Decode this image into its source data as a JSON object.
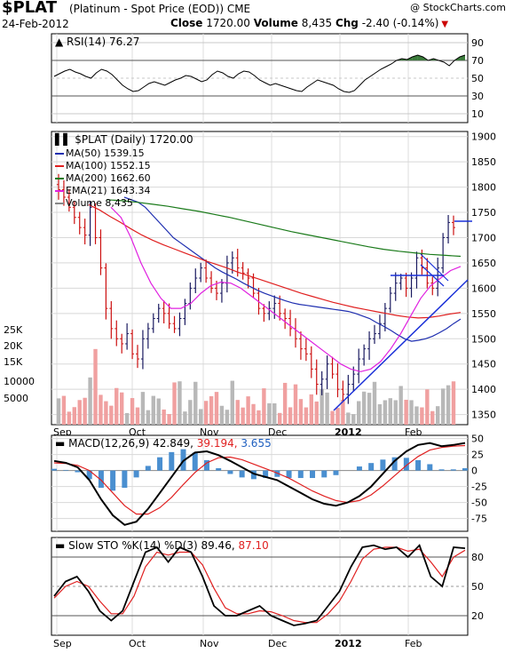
{
  "header": {
    "symbol": "$PLAT",
    "name": "(Platinum - Spot Price (EOD)) CME",
    "copyright": "@ StockCharts.com",
    "date": "24-Feb-2012",
    "close_label": "Close",
    "close_value": "1720.00",
    "volume_label": "Volume",
    "volume_value": "8,435",
    "chg_label": "Chg",
    "chg_value": "-2.40 (-0.14%)"
  },
  "colors": {
    "ma50": "#1f2fb0",
    "ma100": "#e02020",
    "ma200": "#1a7a1a",
    "ema21": "#e020e0",
    "up_bar": "#1a1a60",
    "down_bar": "#cc1010",
    "vol_up": "#b8b8b8",
    "vol_down": "#f0a0a0",
    "trendline": "#1a30d8",
    "rsi_fill_hi": "#3a7a3a",
    "rsi_fill_lo": "#8a4040",
    "macd_hist": "#4a8fd0"
  },
  "chart_data": [
    {
      "type": "line",
      "panel": "rsi",
      "title": "RSI(14) 76.27",
      "ylim": [
        0,
        100
      ],
      "yticks": [
        10,
        30,
        50,
        70,
        90
      ],
      "series": [
        {
          "name": "RSI(14)",
          "values": [
            52,
            55,
            58,
            60,
            57,
            55,
            52,
            50,
            56,
            60,
            58,
            54,
            48,
            42,
            38,
            35,
            36,
            40,
            44,
            46,
            44,
            42,
            45,
            48,
            50,
            53,
            52,
            49,
            46,
            48,
            54,
            58,
            56,
            52,
            50,
            55,
            58,
            57,
            53,
            48,
            45,
            42,
            44,
            42,
            40,
            38,
            36,
            35,
            40,
            44,
            48,
            46,
            44,
            42,
            38,
            35,
            34,
            36,
            42,
            48,
            52,
            56,
            60,
            63,
            66,
            70,
            72,
            71,
            74,
            76,
            74,
            70,
            72,
            70,
            68,
            64,
            70,
            74,
            76
          ]
        }
      ]
    },
    {
      "type": "line",
      "panel": "price",
      "title": "$PLAT (Daily) 1720.00",
      "ylim": [
        1330,
        1910
      ],
      "yticks": [
        1350,
        1400,
        1450,
        1500,
        1550,
        1600,
        1650,
        1700,
        1750,
        1800,
        1850,
        1900
      ],
      "xticks": [
        "Sep",
        "Oct",
        "Nov",
        "Dec",
        "2012",
        "Feb"
      ],
      "legend": [
        "MA(50) 1539.15",
        "MA(100) 1552.15",
        "MA(200) 1662.60",
        "EMA(21) 1643.34",
        "Volume 8,435"
      ],
      "volume_ticks": [
        "25K",
        "20K",
        "15K",
        "10000",
        "5000"
      ],
      "series": [
        {
          "name": "Close",
          "values": [
            1795,
            1780,
            1760,
            1740,
            1720,
            1705,
            1760,
            1700,
            1640,
            1560,
            1520,
            1500,
            1490,
            1510,
            1470,
            1460,
            1500,
            1520,
            1540,
            1560,
            1550,
            1530,
            1520,
            1540,
            1570,
            1600,
            1620,
            1640,
            1620,
            1600,
            1590,
            1610,
            1650,
            1660,
            1640,
            1630,
            1620,
            1590,
            1560,
            1550,
            1560,
            1570,
            1550,
            1540,
            1520,
            1500,
            1480,
            1470,
            1440,
            1410,
            1420,
            1450,
            1430,
            1400,
            1390,
            1410,
            1430,
            1460,
            1480,
            1500,
            1510,
            1530,
            1560,
            1590,
            1610,
            1620,
            1600,
            1620,
            1660,
            1640,
            1610,
            1600,
            1640,
            1700,
            1730,
            1720
          ]
        },
        {
          "name": "MA(50)",
          "values": [
            1780,
            1775,
            1770,
            1760,
            1745,
            1730,
            1715,
            1700,
            1690,
            1680,
            1670,
            1660,
            1650,
            1640,
            1632,
            1625,
            1618,
            1610,
            1603,
            1596,
            1590,
            1585,
            1580,
            1575,
            1571,
            1568,
            1566,
            1564,
            1562,
            1560,
            1558,
            1556,
            1554,
            1550,
            1545,
            1540,
            1532,
            1525,
            1517,
            1508,
            1500,
            1495,
            1497,
            1500,
            1505,
            1512,
            1520,
            1530,
            1539
          ]
        },
        {
          "name": "MA(100)",
          "values": [
            1765,
            1755,
            1742,
            1730,
            1717,
            1705,
            1695,
            1686,
            1678,
            1670,
            1662,
            1654,
            1647,
            1640,
            1632,
            1625,
            1618,
            1611,
            1604,
            1597,
            1590,
            1584,
            1578,
            1572,
            1567,
            1562,
            1558,
            1554,
            1550,
            1546,
            1543,
            1541,
            1542,
            1545,
            1549,
            1552
          ]
        },
        {
          "name": "MA(200)",
          "values": [
            1775,
            1773,
            1770,
            1766,
            1762,
            1757,
            1752,
            1746,
            1740,
            1733,
            1726,
            1719,
            1712,
            1706,
            1700,
            1694,
            1688,
            1682,
            1677,
            1673,
            1670,
            1667,
            1665,
            1663
          ]
        },
        {
          "name": "EMA(21)",
          "values": [
            1760,
            1740,
            1700,
            1650,
            1610,
            1580,
            1560,
            1560,
            1570,
            1590,
            1605,
            1612,
            1610,
            1600,
            1585,
            1570,
            1555,
            1540,
            1525,
            1510,
            1495,
            1480,
            1465,
            1450,
            1440,
            1435,
            1440,
            1455,
            1480,
            1510,
            1545,
            1580,
            1605,
            1620,
            1635,
            1643
          ]
        }
      ]
    },
    {
      "type": "line",
      "panel": "macd",
      "title": "MACD(12,26,9)",
      "values_label": [
        "42.849",
        "39.194",
        "3.655"
      ],
      "ylim": [
        -95,
        55
      ],
      "yticks": [
        50,
        25,
        0,
        -25,
        -50,
        -75
      ],
      "series": [
        {
          "name": "MACD",
          "values": [
            15,
            12,
            5,
            -15,
            -45,
            -70,
            -85,
            -80,
            -60,
            -35,
            -10,
            15,
            28,
            30,
            24,
            15,
            5,
            -5,
            -10,
            -15,
            -25,
            -35,
            -45,
            -52,
            -55,
            -50,
            -40,
            -25,
            -5,
            15,
            30,
            40,
            43,
            38,
            40,
            43
          ]
        },
        {
          "name": "Signal",
          "values": [
            12,
            11,
            8,
            0,
            -15,
            -35,
            -55,
            -68,
            -68,
            -58,
            -42,
            -22,
            -3,
            12,
            20,
            21,
            17,
            10,
            3,
            -4,
            -12,
            -22,
            -32,
            -40,
            -47,
            -50,
            -47,
            -38,
            -24,
            -8,
            8,
            22,
            32,
            36,
            38,
            39
          ]
        }
      ]
    },
    {
      "type": "line",
      "panel": "sto",
      "title": "Slow STO %K(14) %D(3)",
      "values_label": [
        "89.46",
        "87.10"
      ],
      "ylim": [
        0,
        100
      ],
      "yticks": [
        20,
        50,
        80
      ],
      "series": [
        {
          "name": "%K",
          "values": [
            40,
            55,
            60,
            45,
            25,
            15,
            25,
            55,
            85,
            90,
            75,
            90,
            85,
            60,
            30,
            20,
            20,
            25,
            30,
            20,
            15,
            10,
            12,
            15,
            30,
            45,
            70,
            90,
            92,
            88,
            90,
            80,
            92,
            60,
            50,
            90,
            89
          ]
        },
        {
          "name": "%D",
          "values": [
            38,
            50,
            55,
            50,
            35,
            22,
            22,
            40,
            70,
            85,
            82,
            85,
            85,
            72,
            48,
            28,
            22,
            22,
            25,
            24,
            20,
            15,
            13,
            13,
            22,
            35,
            55,
            78,
            88,
            90,
            90,
            86,
            88,
            75,
            60,
            80,
            87
          ]
        }
      ]
    }
  ]
}
